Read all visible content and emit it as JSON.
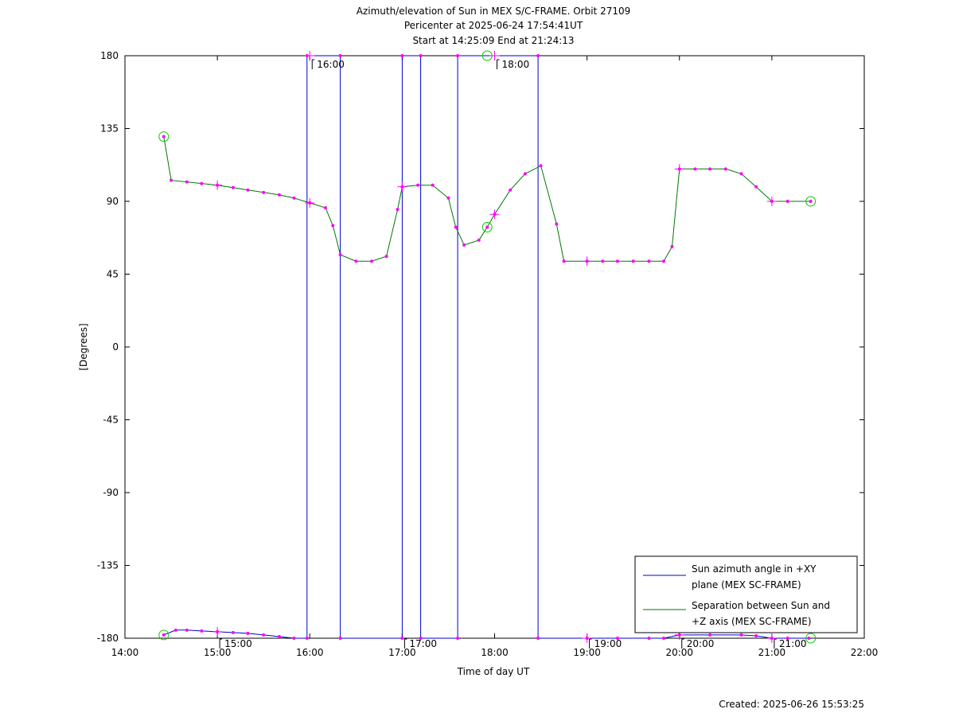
{
  "chart_data": {
    "type": "line",
    "title_lines": [
      "Azimuth/elevation of Sun in MEX S/C-FRAME.  Orbit 27109",
      "Pericenter at 2025-06-24 17:54:41UT",
      "Start at 14:25:09 End at 21:24:13"
    ],
    "xlabel": "Time of day UT",
    "ylabel": "[Degrees]",
    "xlim": [
      14.0,
      22.0
    ],
    "ylim": [
      -180,
      180
    ],
    "x_ticks": [
      {
        "v": 14,
        "label": "14:00"
      },
      {
        "v": 15,
        "label": "15:00"
      },
      {
        "v": 16,
        "label": "16:00"
      },
      {
        "v": 17,
        "label": "17:00"
      },
      {
        "v": 18,
        "label": "18:00"
      },
      {
        "v": 19,
        "label": "19:00"
      },
      {
        "v": 20,
        "label": "20:00"
      },
      {
        "v": 21,
        "label": "21:00"
      },
      {
        "v": 22,
        "label": "22:00"
      }
    ],
    "y_ticks": [
      {
        "v": 180,
        "label": "180"
      },
      {
        "v": 135,
        "label": "135"
      },
      {
        "v": 90,
        "label": "90"
      },
      {
        "v": 45,
        "label": "45"
      },
      {
        "v": 0,
        "label": "0"
      },
      {
        "v": -45,
        "label": "-45"
      },
      {
        "v": -90,
        "label": "-90"
      },
      {
        "v": -135,
        "label": "-135"
      },
      {
        "v": -180,
        "label": "-180"
      }
    ],
    "legend_position": "bottom-right",
    "series": [
      {
        "name": "Sun azimuth angle in +XY plane (MEX SC-FRAME)",
        "legend_lines": [
          "Sun azimuth angle in +XY",
          "plane (MEX SC-FRAME)"
        ],
        "color": "#0000cc",
        "x": [
          14.42,
          14.55,
          14.67,
          14.83,
          15.0,
          15.17,
          15.33,
          15.5,
          15.67,
          15.83,
          15.97,
          15.97,
          16.33,
          16.33,
          17.0,
          17.0,
          17.2,
          17.2,
          17.6,
          17.6,
          18.47,
          18.47,
          19.0,
          19.33,
          19.67,
          19.83,
          20.0,
          20.33,
          20.67,
          20.83,
          21.0,
          21.17,
          21.4
        ],
        "y": [
          -178,
          -175,
          -175,
          -175.5,
          -176,
          -176.5,
          -177,
          -178,
          -179,
          -180,
          -180,
          180,
          180,
          -180,
          -180,
          180,
          180,
          -180,
          -180,
          180,
          180,
          -180,
          -180,
          -180,
          -180,
          -180,
          -178,
          -178,
          -178,
          -178.5,
          -180,
          -180,
          -180
        ]
      },
      {
        "name": "Separation between Sun and +Z axis (MEX SC-FRAME)",
        "legend_lines": [
          "Separation between Sun and",
          "+Z axis (MEX SC-FRAME)"
        ],
        "color": "#007700",
        "x": [
          14.42,
          14.5,
          14.67,
          14.83,
          15.0,
          15.17,
          15.33,
          15.5,
          15.67,
          15.83,
          16.0,
          16.17,
          16.25,
          16.33,
          16.5,
          16.67,
          16.83,
          16.95,
          17.0,
          17.17,
          17.33,
          17.5,
          17.58,
          17.67,
          17.83,
          17.92,
          18.0,
          18.17,
          18.33,
          18.5,
          18.67,
          18.75,
          19.0,
          19.17,
          19.33,
          19.5,
          19.67,
          19.83,
          19.92,
          20.0,
          20.17,
          20.33,
          20.5,
          20.67,
          20.83,
          21.0,
          21.17,
          21.42
        ],
        "y": [
          130,
          103,
          102,
          101,
          100,
          98.5,
          97,
          95.5,
          94,
          92,
          89,
          86,
          75,
          57,
          53,
          53,
          56,
          85,
          99,
          100,
          100,
          92,
          74,
          63,
          66,
          74,
          82,
          97,
          107,
          112,
          76,
          53,
          53,
          53,
          53,
          53,
          53,
          53,
          62,
          110,
          110,
          110,
          110,
          107,
          99,
          90,
          90,
          90
        ]
      }
    ],
    "track_labels": [
      {
        "x": 16.0,
        "label": "16:00",
        "y": 180
      },
      {
        "x": 18.0,
        "label": "18:00",
        "y": 180
      },
      {
        "x": 15.0,
        "label": "15:00",
        "y": -180
      },
      {
        "x": 17.0,
        "label": "17:00",
        "y": -180
      },
      {
        "x": 19.0,
        "label": "19:00",
        "y": -180
      },
      {
        "x": 20.0,
        "label": "20:00",
        "y": -180
      },
      {
        "x": 21.0,
        "label": "21:00",
        "y": -180
      }
    ],
    "circle_markers": [
      {
        "x": 14.42,
        "y": 130
      },
      {
        "x": 14.42,
        "y": -178
      },
      {
        "x": 17.92,
        "y": 180
      },
      {
        "x": 17.92,
        "y": 74
      },
      {
        "x": 21.42,
        "y": 90
      },
      {
        "x": 21.42,
        "y": -180
      }
    ],
    "cross_markers": [
      {
        "x": 15.0,
        "y": 100
      },
      {
        "x": 16.0,
        "y": 89
      },
      {
        "x": 17.0,
        "y": 99
      },
      {
        "x": 18.0,
        "y": 82
      },
      {
        "x": 19.0,
        "y": 53
      },
      {
        "x": 20.0,
        "y": 110
      },
      {
        "x": 21.0,
        "y": 90
      },
      {
        "x": 15.0,
        "y": -176
      },
      {
        "x": 16.0,
        "y": 180
      },
      {
        "x": 18.0,
        "y": 180
      },
      {
        "x": 19.0,
        "y": -180
      },
      {
        "x": 20.0,
        "y": -178
      },
      {
        "x": 21.0,
        "y": -180
      }
    ],
    "footer": "Created: 2025-06-26 15:53:25"
  }
}
